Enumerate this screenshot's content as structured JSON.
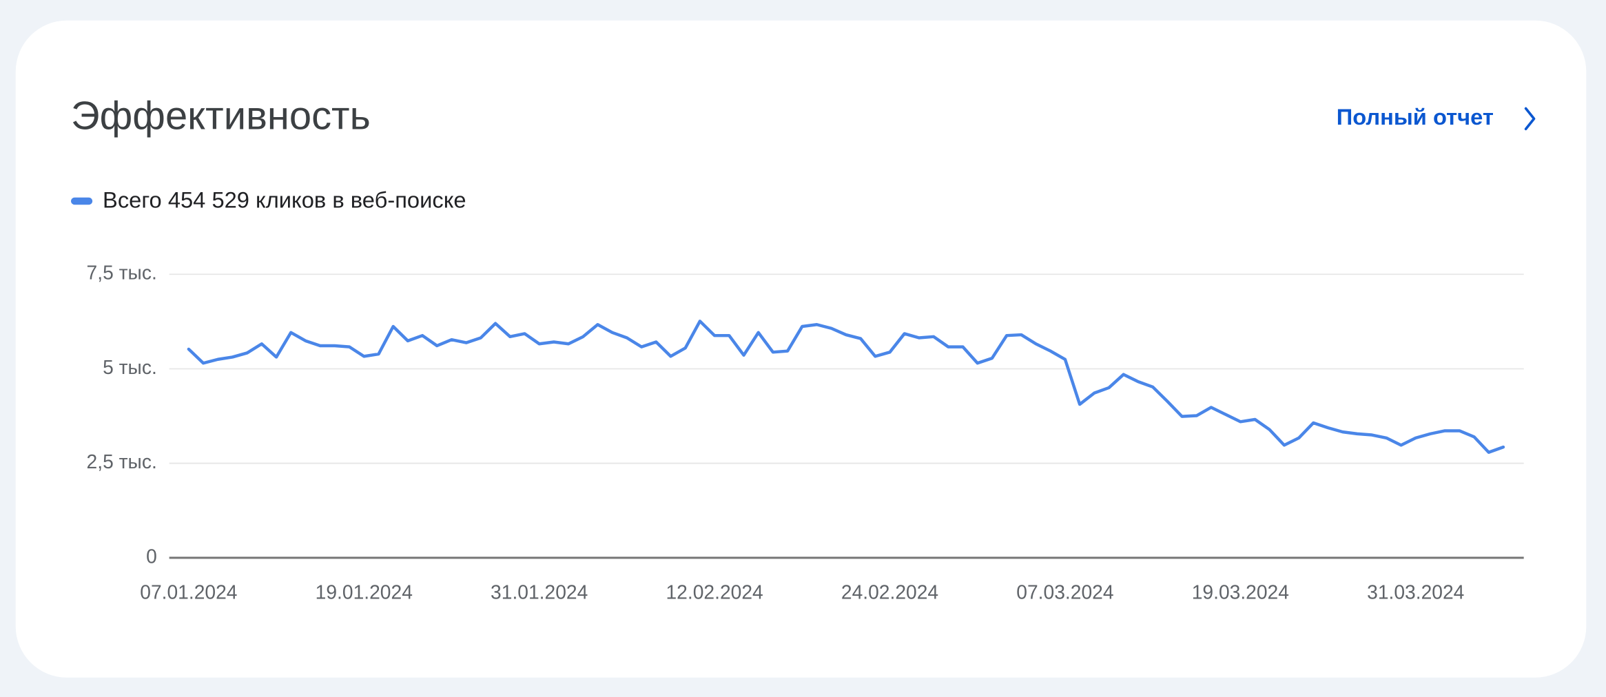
{
  "header": {
    "title": "Эффективность",
    "link": "Полный отчет"
  },
  "chart_data": {
    "type": "line",
    "categories": [
      "07.01.2024",
      null,
      null,
      null,
      null,
      null,
      null,
      null,
      null,
      null,
      null,
      null,
      "19.01.2024",
      null,
      null,
      null,
      null,
      null,
      null,
      null,
      null,
      null,
      null,
      null,
      "31.01.2024",
      null,
      null,
      null,
      null,
      null,
      null,
      null,
      null,
      null,
      null,
      null,
      "12.02.2024",
      null,
      null,
      null,
      null,
      null,
      null,
      null,
      null,
      null,
      null,
      null,
      "24.02.2024",
      null,
      null,
      null,
      null,
      null,
      null,
      null,
      null,
      null,
      null,
      null,
      "07.03.2024",
      null,
      null,
      null,
      null,
      null,
      null,
      null,
      null,
      null,
      null,
      null,
      "19.03.2024",
      null,
      null,
      null,
      null,
      null,
      null,
      null,
      null,
      null,
      null,
      null,
      "31.03.2024",
      null,
      null,
      null,
      null,
      null,
      null
    ],
    "series": [
      {
        "name": "Всего 454 529 кликов в веб-поиске",
        "color": "#4a86e8",
        "values": [
          5520,
          5150,
          5250,
          5310,
          5420,
          5660,
          5310,
          5960,
          5740,
          5610,
          5610,
          5580,
          5330,
          5390,
          6120,
          5740,
          5880,
          5610,
          5770,
          5690,
          5820,
          6200,
          5850,
          5930,
          5660,
          5710,
          5660,
          5850,
          6170,
          5960,
          5820,
          5580,
          5710,
          5330,
          5550,
          6260,
          5880,
          5880,
          5360,
          5960,
          5440,
          5470,
          6120,
          6170,
          6070,
          5900,
          5800,
          5330,
          5440,
          5930,
          5820,
          5850,
          5580,
          5580,
          5150,
          5280,
          5880,
          5900,
          5660,
          5470,
          5250,
          4060,
          4360,
          4500,
          4850,
          4660,
          4520,
          4140,
          3740,
          3760,
          3980,
          3790,
          3600,
          3660,
          3390,
          2980,
          3170,
          3570,
          3440,
          3330,
          3280,
          3250,
          3170,
          2980,
          3170,
          3280,
          3360,
          3360,
          3200,
          2790,
          2930
        ]
      }
    ],
    "ylim": [
      0,
      7500
    ],
    "yticks": [
      0,
      {
        "value": 2500,
        "label": "2,5 тыс."
      },
      {
        "value": 5000,
        "label": "5 тыс."
      },
      {
        "value": 7500,
        "label": "7,5 тыс."
      }
    ],
    "grid": true
  }
}
